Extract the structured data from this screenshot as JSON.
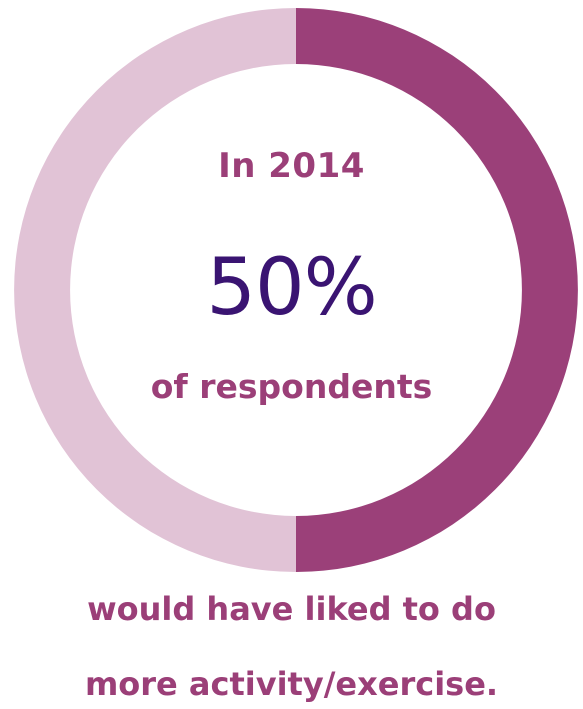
{
  "chart_data": {
    "type": "pie",
    "year_label": "In 2014",
    "value_label": "50%",
    "subject_label": "of respondents",
    "caption_lines": [
      "would have liked to do",
      "more activity/exercise."
    ],
    "slices": [
      {
        "value": 50,
        "color": "#9b4079"
      },
      {
        "value": 50,
        "color": "#e1c3d6"
      }
    ]
  }
}
